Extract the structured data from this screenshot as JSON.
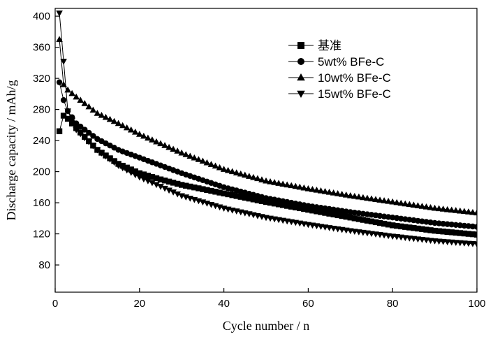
{
  "chart_data": {
    "type": "line",
    "xlabel": "Cycle number / n",
    "ylabel": "Discharge capacity / mAh/g",
    "xlim": [
      0,
      100
    ],
    "ylim": [
      45,
      410
    ],
    "xticks": [
      0,
      20,
      40,
      60,
      80,
      100
    ],
    "yticks": [
      80,
      120,
      160,
      200,
      240,
      280,
      320,
      360,
      400
    ],
    "grid": false,
    "legend_position": "top-right",
    "series": [
      {
        "name": "基准",
        "marker": "square",
        "anchors": [
          [
            1,
            252
          ],
          [
            2,
            272
          ],
          [
            3,
            268
          ],
          [
            5,
            256
          ],
          [
            10,
            228
          ],
          [
            15,
            210
          ],
          [
            20,
            198
          ],
          [
            25,
            190
          ],
          [
            30,
            183
          ],
          [
            40,
            172
          ],
          [
            50,
            161
          ],
          [
            60,
            151
          ],
          [
            70,
            141
          ],
          [
            80,
            131
          ],
          [
            90,
            124
          ],
          [
            100,
            119
          ]
        ]
      },
      {
        "name": "5wt% BFe-C",
        "marker": "circle",
        "anchors": [
          [
            1,
            315
          ],
          [
            2,
            292
          ],
          [
            3,
            278
          ],
          [
            5,
            262
          ],
          [
            10,
            242
          ],
          [
            15,
            228
          ],
          [
            20,
            218
          ],
          [
            25,
            208
          ],
          [
            30,
            198
          ],
          [
            40,
            180
          ],
          [
            50,
            166
          ],
          [
            60,
            156
          ],
          [
            70,
            148
          ],
          [
            80,
            141
          ],
          [
            90,
            134
          ],
          [
            100,
            129
          ]
        ]
      },
      {
        "name": "10wt% BFe-C",
        "marker": "triangle-up",
        "anchors": [
          [
            1,
            370
          ],
          [
            2,
            312
          ],
          [
            3,
            305
          ],
          [
            5,
            296
          ],
          [
            10,
            275
          ],
          [
            15,
            262
          ],
          [
            20,
            248
          ],
          [
            25,
            236
          ],
          [
            30,
            224
          ],
          [
            40,
            203
          ],
          [
            50,
            188
          ],
          [
            60,
            178
          ],
          [
            70,
            169
          ],
          [
            80,
            161
          ],
          [
            90,
            153
          ],
          [
            100,
            147
          ]
        ]
      },
      {
        "name": "15wt% BFe-C",
        "marker": "triangle-down",
        "anchors": [
          [
            1,
            404
          ],
          [
            2,
            342
          ],
          [
            3,
            278
          ],
          [
            5,
            254
          ],
          [
            10,
            228
          ],
          [
            15,
            208
          ],
          [
            20,
            193
          ],
          [
            25,
            181
          ],
          [
            30,
            169
          ],
          [
            40,
            153
          ],
          [
            50,
            141
          ],
          [
            60,
            132
          ],
          [
            70,
            124
          ],
          [
            80,
            117
          ],
          [
            90,
            111
          ],
          [
            100,
            107
          ]
        ]
      }
    ]
  }
}
